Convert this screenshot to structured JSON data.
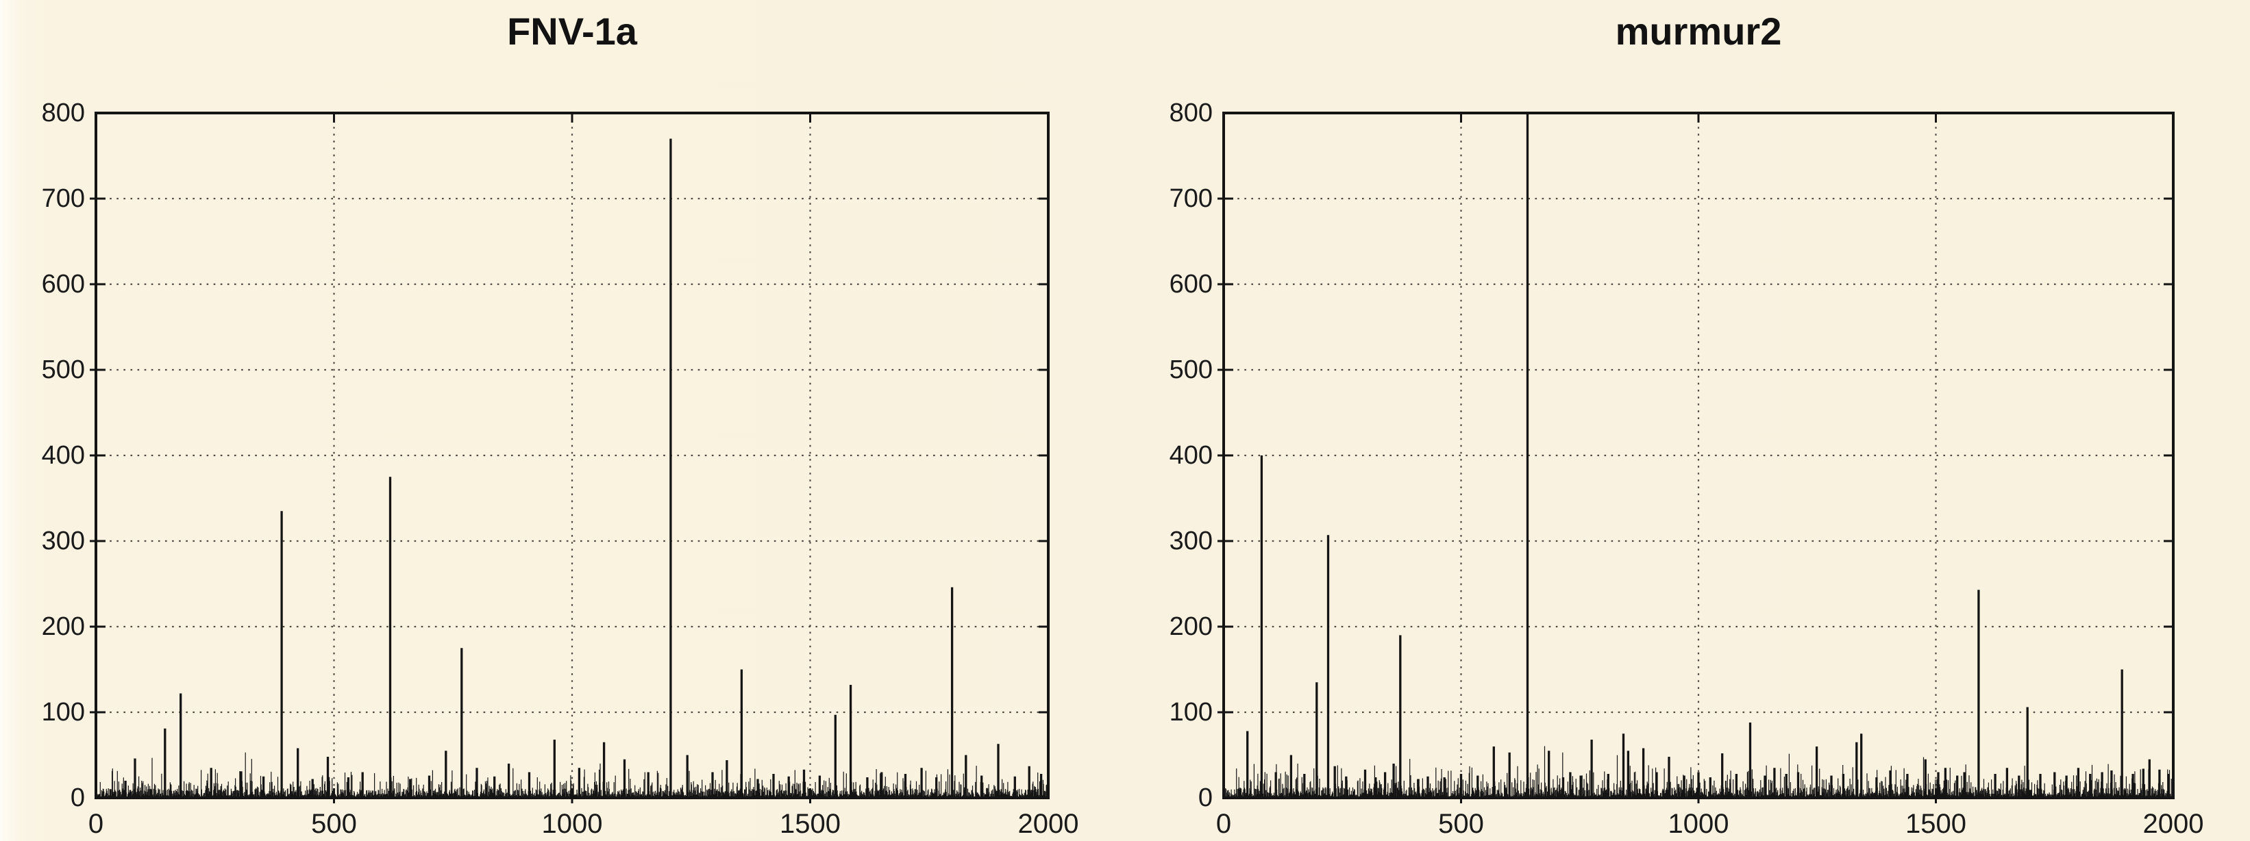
{
  "figure": {
    "background_color": "#faf3e1",
    "ink_color": "#141414",
    "grid_color": "#45403a"
  },
  "chart_data": [
    {
      "type": "line",
      "title": "FNV-1a",
      "xlabel": "",
      "ylabel": "",
      "xlim": [
        0,
        2000
      ],
      "ylim": [
        0,
        800
      ],
      "x_tick_values": [
        0,
        500,
        1000,
        1500,
        2000
      ],
      "x_tick_labels": [
        "0",
        "500",
        "1000",
        "1500",
        "2000"
      ],
      "y_tick_values": [
        0,
        100,
        200,
        300,
        400,
        500,
        600,
        700,
        800
      ],
      "y_tick_labels": [
        "0",
        "100",
        "200",
        "300",
        "400",
        "500",
        "600",
        "700",
        "800"
      ],
      "grid": "dotted",
      "legend": "none",
      "series_color": "#141414",
      "description": "Collision-count spikes per bucket; dense noise floor 0-30 with isolated tall spikes",
      "noise": {
        "seed": 7,
        "scale": 1.0,
        "max_typical": 30
      },
      "peaks": [
        [
          62,
          20
        ],
        [
          82,
          46
        ],
        [
          145,
          81
        ],
        [
          178,
          122
        ],
        [
          242,
          35
        ],
        [
          305,
          31
        ],
        [
          352,
          25
        ],
        [
          390,
          335
        ],
        [
          424,
          58
        ],
        [
          455,
          22
        ],
        [
          487,
          48
        ],
        [
          530,
          24
        ],
        [
          560,
          30
        ],
        [
          618,
          375
        ],
        [
          660,
          22
        ],
        [
          700,
          26
        ],
        [
          735,
          55
        ],
        [
          768,
          175
        ],
        [
          800,
          35
        ],
        [
          837,
          25
        ],
        [
          867,
          40
        ],
        [
          910,
          30
        ],
        [
          963,
          68
        ],
        [
          1015,
          35
        ],
        [
          1067,
          65
        ],
        [
          1110,
          45
        ],
        [
          1160,
          30
        ],
        [
          1207,
          770
        ],
        [
          1242,
          50
        ],
        [
          1295,
          30
        ],
        [
          1325,
          44
        ],
        [
          1356,
          150
        ],
        [
          1390,
          22
        ],
        [
          1423,
          28
        ],
        [
          1455,
          25
        ],
        [
          1487,
          33
        ],
        [
          1520,
          26
        ],
        [
          1553,
          97
        ],
        [
          1585,
          132
        ],
        [
          1620,
          24
        ],
        [
          1650,
          30
        ],
        [
          1700,
          28
        ],
        [
          1734,
          35
        ],
        [
          1765,
          24
        ],
        [
          1798,
          246
        ],
        [
          1827,
          50
        ],
        [
          1860,
          26
        ],
        [
          1895,
          63
        ],
        [
          1930,
          25
        ],
        [
          1960,
          37
        ],
        [
          1985,
          28
        ]
      ]
    },
    {
      "type": "line",
      "title": "murmur2",
      "xlabel": "",
      "ylabel": "",
      "xlim": [
        0,
        2000
      ],
      "ylim": [
        0,
        800
      ],
      "x_tick_values": [
        0,
        500,
        1000,
        1500,
        2000
      ],
      "x_tick_labels": [
        "0",
        "500",
        "1000",
        "1500",
        "2000"
      ],
      "y_tick_values": [
        0,
        100,
        200,
        300,
        400,
        500,
        600,
        700,
        800
      ],
      "y_tick_labels": [
        "0",
        "100",
        "200",
        "300",
        "400",
        "500",
        "600",
        "700",
        "800"
      ],
      "grid": "dotted",
      "legend": "none",
      "series_color": "#141414",
      "description": "Collision-count spikes per bucket; one spike clipped at top of axis (>=800)",
      "noise": {
        "seed": 13,
        "scale": 1.15,
        "max_typical": 32
      },
      "peaks": [
        [
          50,
          78
        ],
        [
          80,
          400
        ],
        [
          110,
          30
        ],
        [
          142,
          50
        ],
        [
          170,
          28
        ],
        [
          196,
          135
        ],
        [
          220,
          307
        ],
        [
          234,
          37
        ],
        [
          258,
          25
        ],
        [
          298,
          33
        ],
        [
          320,
          24
        ],
        [
          340,
          30
        ],
        [
          358,
          40
        ],
        [
          372,
          190
        ],
        [
          410,
          22
        ],
        [
          430,
          25
        ],
        [
          465,
          24
        ],
        [
          500,
          28
        ],
        [
          535,
          26
        ],
        [
          569,
          60
        ],
        [
          602,
          53
        ],
        [
          640,
          800
        ],
        [
          685,
          55
        ],
        [
          715,
          24
        ],
        [
          730,
          30
        ],
        [
          752,
          26
        ],
        [
          775,
          68
        ],
        [
          810,
          28
        ],
        [
          842,
          75
        ],
        [
          852,
          55
        ],
        [
          884,
          58
        ],
        [
          912,
          30
        ],
        [
          938,
          48
        ],
        [
          970,
          26
        ],
        [
          1000,
          30
        ],
        [
          1025,
          24
        ],
        [
          1050,
          52
        ],
        [
          1080,
          28
        ],
        [
          1109,
          88
        ],
        [
          1140,
          26
        ],
        [
          1160,
          35
        ],
        [
          1185,
          28
        ],
        [
          1210,
          30
        ],
        [
          1249,
          60
        ],
        [
          1280,
          26
        ],
        [
          1305,
          28
        ],
        [
          1333,
          65
        ],
        [
          1343,
          75
        ],
        [
          1375,
          24
        ],
        [
          1404,
          32
        ],
        [
          1440,
          28
        ],
        [
          1478,
          45
        ],
        [
          1505,
          30
        ],
        [
          1520,
          35
        ],
        [
          1545,
          26
        ],
        [
          1560,
          30
        ],
        [
          1590,
          243
        ],
        [
          1625,
          28
        ],
        [
          1650,
          35
        ],
        [
          1675,
          26
        ],
        [
          1693,
          106
        ],
        [
          1720,
          28
        ],
        [
          1750,
          30
        ],
        [
          1775,
          26
        ],
        [
          1800,
          35
        ],
        [
          1825,
          28
        ],
        [
          1850,
          30
        ],
        [
          1870,
          32
        ],
        [
          1892,
          150
        ],
        [
          1915,
          28
        ],
        [
          1937,
          34
        ],
        [
          1950,
          45
        ],
        [
          1971,
          33
        ],
        [
          1990,
          28
        ]
      ]
    }
  ]
}
